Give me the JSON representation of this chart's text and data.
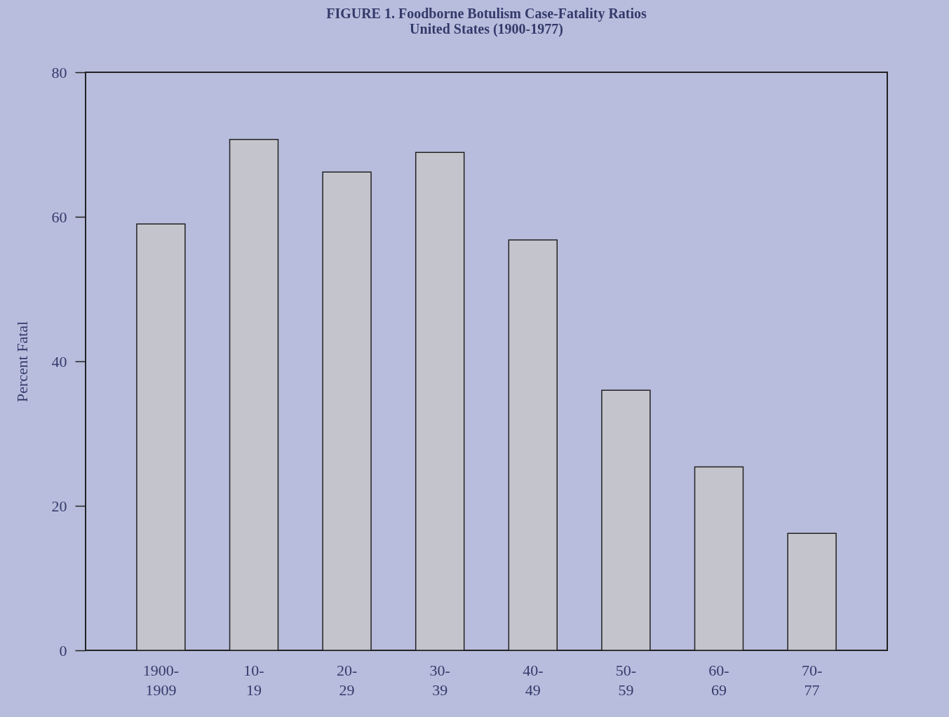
{
  "chart_data": {
    "type": "bar",
    "title": "FIGURE 1. Foodborne Botulism Case-Fatality Ratios",
    "subtitle": "United States (1900-1977)",
    "ylabel": "Percent Fatal",
    "categories": [
      "1900-\n1909",
      "10-\n19",
      "20-\n29",
      "30-\n39",
      "40-\n49",
      "50-\n59",
      "60-\n69",
      "70-\n77"
    ],
    "values": [
      59,
      70.7,
      66.2,
      68.9,
      56.8,
      36,
      25.4,
      16.2
    ],
    "color": "#c4c4cc",
    "ylim": [
      0,
      80
    ],
    "yticks": [
      0,
      20,
      40,
      60,
      80
    ],
    "grid": false
  }
}
